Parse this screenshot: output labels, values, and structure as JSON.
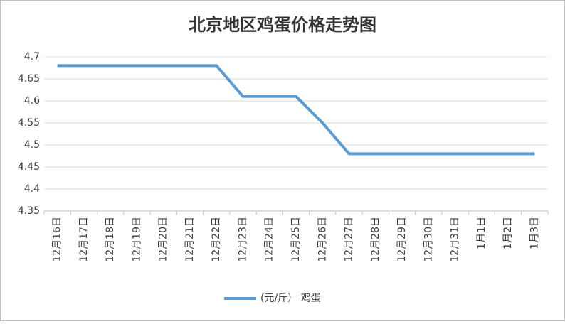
{
  "chart_data": {
    "type": "line",
    "title": "北京地区鸡蛋价格走势图",
    "categories": [
      "12月16日",
      "12月17日",
      "12月18日",
      "12月19日",
      "12月20日",
      "12月21日",
      "12月22日",
      "12月23日",
      "12月24日",
      "12月25日",
      "12月26日",
      "12月27日",
      "12月28日",
      "12月29日",
      "12月30日",
      "12月31日",
      "1月1日",
      "1月2日",
      "1月3日"
    ],
    "series": [
      {
        "name": "(元/斤） 鸡蛋",
        "color": "#5b9bd5",
        "values": [
          4.68,
          4.68,
          4.68,
          4.68,
          4.68,
          4.68,
          4.68,
          4.61,
          4.61,
          4.61,
          4.55,
          4.48,
          4.48,
          4.48,
          4.48,
          4.48,
          4.48,
          4.48,
          4.48
        ]
      }
    ],
    "ylim": [
      4.35,
      4.7
    ],
    "yticks": [
      4.35,
      4.4,
      4.45,
      4.5,
      4.55,
      4.6,
      4.65,
      4.7
    ],
    "grid": true,
    "legend": "bottom"
  }
}
